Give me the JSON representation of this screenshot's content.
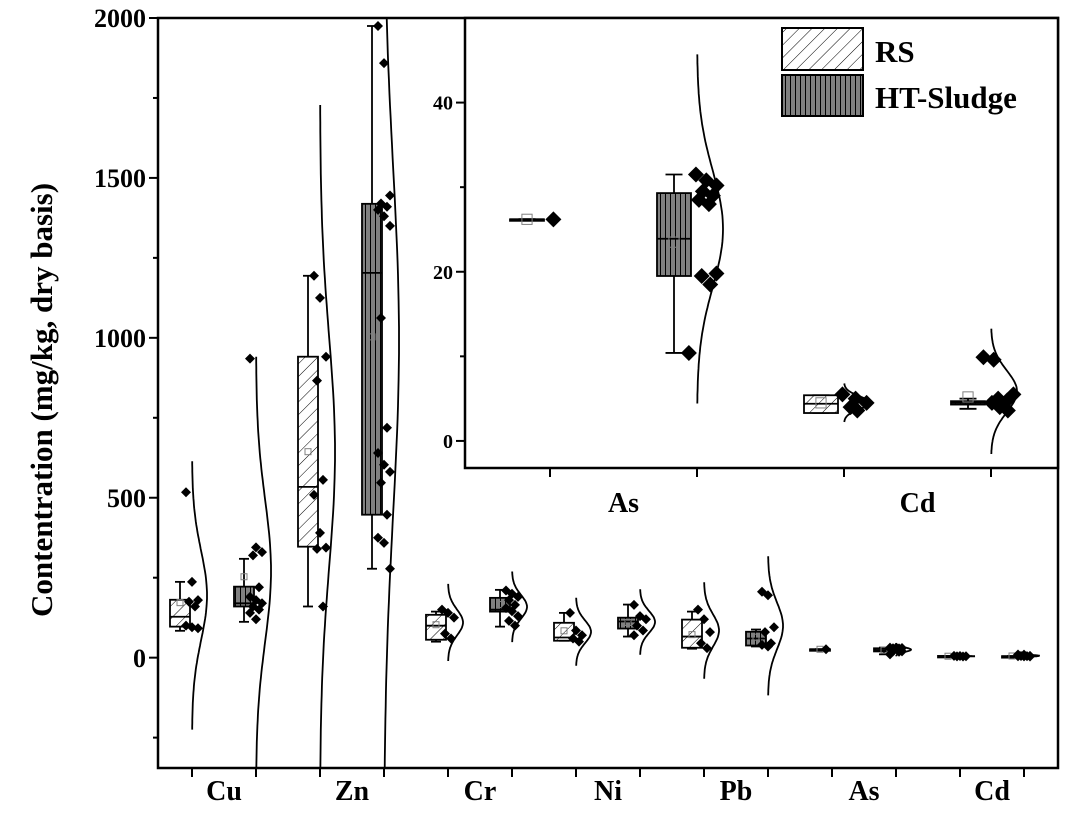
{
  "chart_data": [
    {
      "type": "box",
      "ylabel": "Contentration (mg/kg, dry basis)",
      "xlabel": "",
      "ylim": [
        -345,
        2000
      ],
      "yticks": [
        0,
        500,
        1000,
        1500,
        2000
      ],
      "ytick_labels": [
        "0",
        "500",
        "1000",
        "1500",
        "2000"
      ],
      "categories": [
        "Cu",
        "Zn",
        "Cr",
        "Ni",
        "Pb",
        "As",
        "Cd"
      ],
      "groups": [
        "RS",
        "HT-Sludge"
      ],
      "data": {
        "Cu": {
          "RS": {
            "box": [
              84,
              97,
              128,
              181,
              237
            ],
            "mean": 172,
            "points": [
              517,
              237,
              180,
              175,
              160,
              100,
              95,
              92
            ]
          },
          "HT-Sludge": {
            "box": [
              112,
              160,
              170,
              222,
              309
            ],
            "mean": 253,
            "points": [
              935,
              345,
              330,
              320,
              220,
              190,
              180,
              170,
              160,
              150,
              140,
              120
            ]
          }
        },
        "Zn": {
          "RS": {
            "box": [
              160,
              347,
              534,
              941,
              1194
            ],
            "mean": 644,
            "points": [
              1194,
              1125,
              941,
              866,
              556,
              509,
              390,
              344,
              340,
              160
            ]
          },
          "HT-Sludge": {
            "box": [
              278,
              447,
              1203,
              1419,
              1975
            ],
            "mean": 1003,
            "points": [
              1975,
              1859,
              1445,
              1420,
              1410,
              1400,
              1380,
              1350,
              1062,
              719,
              640,
              603,
              581,
              547,
              447,
              375,
              359,
              278
            ]
          }
        },
        "Cr": {
          "RS": {
            "box": [
              50,
              56,
              100,
              134,
              144
            ],
            "mean": 103,
            "points": [
              150,
              140,
              125,
              75,
              60
            ]
          },
          "HT-Sludge": {
            "box": [
              97,
              144,
              150,
              187,
              212
            ],
            "mean": 166,
            "points": [
              210,
              200,
              190,
              180,
              165,
              155,
              145,
              130,
              115,
              100
            ]
          }
        },
        "Ni": {
          "RS": {
            "box": [
              53,
              53,
              63,
              109,
              140
            ],
            "mean": 84,
            "points": [
              140,
              85,
              70,
              60,
              50
            ]
          },
          "HT-Sludge": {
            "box": [
              66,
              91,
              113,
              125,
              166
            ],
            "mean": 110,
            "points": [
              165,
              130,
              120,
              100,
              85,
              70
            ]
          }
        },
        "Pb": {
          "RS": {
            "box": [
              28,
              31,
              66,
              119,
              144
            ],
            "mean": 72,
            "points": [
              150,
              120,
              80,
              45,
              30
            ]
          },
          "HT-Sludge": {
            "box": [
              35,
              38,
              60,
              81,
              88
            ],
            "mean": 64,
            "points": [
              206,
              195,
              95,
              80,
              45,
              40,
              35
            ]
          }
        },
        "As": {
          "RS": {
            "box": [
              26.2,
              26.2,
              26.2,
              26.2,
              26.2
            ],
            "mean": 26.2,
            "points": [
              26.2
            ]
          },
          "HT-Sludge": {
            "box": [
              10.4,
              19.5,
              23.9,
              29.3,
              31.5
            ],
            "mean": 23.5,
            "points": [
              31.5,
              30.8,
              30.2,
              29.5,
              29,
              28.5,
              28,
              19.8,
              19.5,
              18.5,
              10.4
            ]
          }
        },
        "Cd": {
          "RS": {
            "box": [
              3.3,
              3.3,
              4.4,
              5.4,
              5.4
            ],
            "mean": 4.5,
            "points": [
              5.5,
              5.0,
              4.5,
              4.0,
              3.6
            ]
          },
          "HT-Sludge": {
            "box": [
              3.8,
              4.3,
              4.5,
              4.7,
              5.0
            ],
            "mean": 5.2,
            "points": [
              9.9,
              9.6,
              5.5,
              5.0,
              4.8,
              4.5,
              4.0,
              3.6
            ]
          }
        }
      }
    },
    {
      "type": "box",
      "role": "inset",
      "ylim": [
        -3.2,
        50
      ],
      "yticks": [
        0,
        20,
        40
      ],
      "ytick_labels": [
        "0",
        "20",
        "40"
      ],
      "categories": [
        "As",
        "Cd"
      ],
      "data_source": "same as main chart",
      "legend": {
        "position": "top-right",
        "entries": [
          "RS",
          "HT-Sludge"
        ]
      }
    }
  ],
  "colors": {
    "rs_fill": "#ffffff",
    "ht_fill": "#808080",
    "line": "#000000",
    "mean_marker": "#808080"
  }
}
